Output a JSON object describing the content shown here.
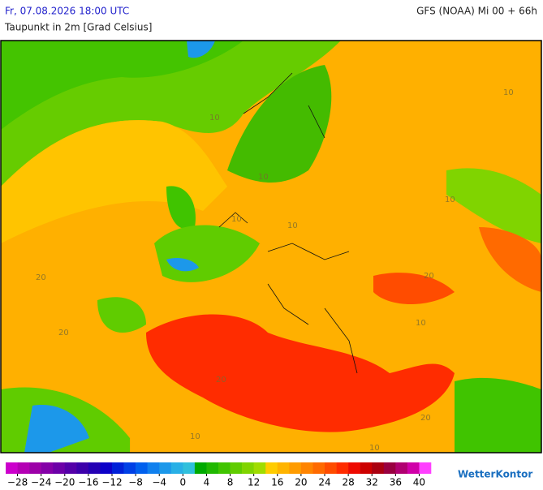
{
  "header": {
    "left": "Fr, 07.08.2026 18:00 UTC",
    "right": "GFS (NOAA) Mi 00 + 66h",
    "subtitle": "Taupunkt in 2m [Grad Celsius]"
  },
  "map": {
    "contour_labels": [
      "10",
      "10",
      "10",
      "10",
      "10",
      "10",
      "20",
      "20",
      "20",
      "10",
      "10",
      "20",
      "10",
      "20"
    ]
  },
  "colorbar": {
    "lim": [
      -30,
      42
    ],
    "colors": [
      "#cc00cc",
      "#b400b4",
      "#9c00a8",
      "#8400a8",
      "#6c00a8",
      "#5400a8",
      "#3c00aa",
      "#2400b4",
      "#0c00c8",
      "#0020d8",
      "#0040e6",
      "#0060ee",
      "#1080ee",
      "#1c98ea",
      "#28b0e6",
      "#30c0dc",
      "#00aa00",
      "#20b800",
      "#40c400",
      "#60cc00",
      "#80d400",
      "#a0dc00",
      "#ffcc00",
      "#ffb400",
      "#ff9c00",
      "#ff8400",
      "#ff6a00",
      "#ff4c00",
      "#ff2c00",
      "#ee0a00",
      "#cc0000",
      "#aa0010",
      "#990040",
      "#b00070",
      "#d000a8",
      "#ff40ff"
    ],
    "ticks": [
      {
        "value": -28,
        "label": "−28"
      },
      {
        "value": -24,
        "label": "−24"
      },
      {
        "value": -20,
        "label": "−20"
      },
      {
        "value": -16,
        "label": "−16"
      },
      {
        "value": -12,
        "label": "−12"
      },
      {
        "value": -8,
        "label": "−8"
      },
      {
        "value": -4,
        "label": "−4"
      },
      0,
      4,
      8,
      12,
      16,
      20,
      24,
      28,
      32,
      36,
      40
    ]
  },
  "brand": "WetterKontor"
}
